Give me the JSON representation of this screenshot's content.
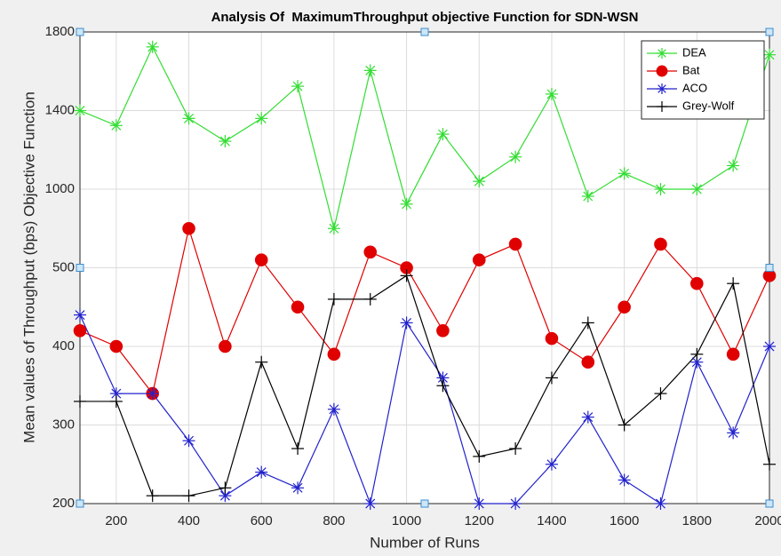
{
  "chart_data": {
    "type": "line",
    "title": "Analysis Of  MaximumThroughput objective Function for SDN-WSN",
    "xlabel": "Number of Runs",
    "ylabel": "Mean values of Throughput (bps) Objective Function",
    "x": [
      100,
      200,
      300,
      400,
      500,
      600,
      700,
      800,
      900,
      1000,
      1100,
      1200,
      1300,
      1400,
      1500,
      1600,
      1700,
      1800,
      1900,
      2000
    ],
    "xlim": [
      100,
      2000
    ],
    "xticks": [
      200,
      400,
      600,
      800,
      1000,
      1200,
      1400,
      1600,
      1800,
      2000
    ],
    "ylim": [
      200,
      800
    ],
    "yticks": [
      200,
      300,
      400,
      500,
      {
        "value": 600,
        "label": "1000"
      },
      {
        "value": 700,
        "label": "1400"
      },
      {
        "value": 800,
        "label": "1800"
      }
    ],
    "grid": true,
    "legend": "top-right",
    "series": [
      {
        "name": "DEA",
        "color": "#33dd33",
        "marker": "asterisk",
        "values": [
          700,
          681,
          781,
          690,
          661,
          690,
          731,
          550,
          751,
          581,
          670,
          610,
          641,
          721,
          591,
          620,
          600,
          600,
          630,
          771
        ]
      },
      {
        "name": "Bat",
        "color": "#e00000",
        "marker": "circle",
        "values": [
          420,
          400,
          340,
          550,
          400,
          510,
          450,
          390,
          520,
          500,
          420,
          510,
          530,
          410,
          380,
          450,
          530,
          480,
          390,
          490
        ]
      },
      {
        "name": "ACO",
        "color": "#2222cc",
        "marker": "asterisk",
        "values": [
          440,
          340,
          340,
          280,
          210,
          240,
          220,
          320,
          200,
          430,
          360,
          200,
          200,
          250,
          310,
          230,
          200,
          380,
          290,
          400
        ]
      },
      {
        "name": "Grey-Wolf",
        "color": "#000000",
        "marker": "plus",
        "values": [
          330,
          330,
          210,
          210,
          220,
          380,
          270,
          460,
          460,
          490,
          350,
          260,
          270,
          360,
          430,
          300,
          340,
          390,
          480,
          250
        ]
      }
    ]
  }
}
